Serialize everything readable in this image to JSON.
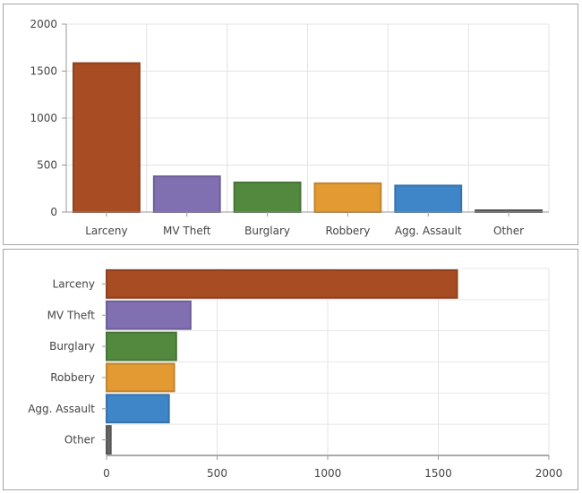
{
  "chart_data": [
    {
      "type": "bar",
      "orientation": "vertical",
      "categories": [
        "Larceny",
        "MV Theft",
        "Burglary",
        "Robbery",
        "Agg. Assault",
        "Other"
      ],
      "values": [
        1585,
        380,
        315,
        306,
        282,
        19
      ],
      "colors": [
        "#a84c24",
        "#8070b2",
        "#52893f",
        "#e39a33",
        "#3f86c8",
        "#666666"
      ],
      "ylim": [
        0,
        2000
      ],
      "yticks": [
        "0",
        "500",
        "1000",
        "1500",
        "2000"
      ],
      "grid": true,
      "legend": "none"
    },
    {
      "type": "bar",
      "orientation": "horizontal",
      "categories": [
        "Larceny",
        "MV Theft",
        "Burglary",
        "Robbery",
        "Agg. Assault",
        "Other"
      ],
      "values": [
        1585,
        380,
        315,
        306,
        282,
        19
      ],
      "colors": [
        "#a84c24",
        "#8070b2",
        "#52893f",
        "#e39a33",
        "#3f86c8",
        "#666666"
      ],
      "xlim": [
        0,
        2000
      ],
      "xticks": [
        "0",
        "500",
        "1000",
        "1500",
        "2000"
      ],
      "grid": true,
      "legend": "none"
    }
  ]
}
